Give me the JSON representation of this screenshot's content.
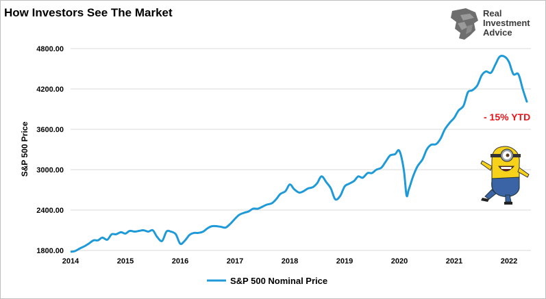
{
  "chart_data": {
    "type": "line",
    "title": "How Investors See The Market",
    "xlabel": "",
    "ylabel": "S&P 500 Price",
    "ylim": [
      1800,
      4800
    ],
    "xlim": [
      2014,
      2022.4
    ],
    "y_ticks": [
      "1800.00",
      "2400.00",
      "3000.00",
      "3600.00",
      "4200.00",
      "4800.00"
    ],
    "x_ticks": [
      "2014",
      "2015",
      "2016",
      "2017",
      "2018",
      "2019",
      "2020",
      "2021",
      "2022"
    ],
    "grid": "horizontal",
    "legend_position": "bottom",
    "series": [
      {
        "name": "S&P 500 Nominal Price",
        "color": "#1f9ad8",
        "x": [
          2014.0,
          2014.08,
          2014.17,
          2014.25,
          2014.33,
          2014.42,
          2014.5,
          2014.58,
          2014.67,
          2014.75,
          2014.83,
          2014.92,
          2015.0,
          2015.08,
          2015.17,
          2015.25,
          2015.33,
          2015.42,
          2015.5,
          2015.58,
          2015.67,
          2015.75,
          2015.83,
          2015.92,
          2016.0,
          2016.08,
          2016.17,
          2016.25,
          2016.33,
          2016.42,
          2016.5,
          2016.58,
          2016.67,
          2016.75,
          2016.83,
          2016.92,
          2017.0,
          2017.08,
          2017.17,
          2017.25,
          2017.33,
          2017.42,
          2017.5,
          2017.58,
          2017.67,
          2017.75,
          2017.83,
          2017.92,
          2018.0,
          2018.08,
          2018.17,
          2018.25,
          2018.33,
          2018.42,
          2018.5,
          2018.58,
          2018.67,
          2018.75,
          2018.83,
          2018.92,
          2019.0,
          2019.08,
          2019.17,
          2019.25,
          2019.33,
          2019.42,
          2019.5,
          2019.58,
          2019.67,
          2019.75,
          2019.83,
          2019.92,
          2020.0,
          2020.08,
          2020.13,
          2020.17,
          2020.25,
          2020.33,
          2020.42,
          2020.5,
          2020.58,
          2020.67,
          2020.75,
          2020.83,
          2020.92,
          2021.0,
          2021.08,
          2021.17,
          2021.25,
          2021.33,
          2021.42,
          2021.5,
          2021.58,
          2021.67,
          2021.75,
          2021.83,
          2021.92,
          2022.0,
          2022.08,
          2022.17,
          2022.25,
          2022.33
        ],
        "values": [
          1780,
          1790,
          1830,
          1860,
          1900,
          1950,
          1950,
          1990,
          1960,
          2040,
          2040,
          2070,
          2050,
          2090,
          2080,
          2090,
          2100,
          2080,
          2100,
          2000,
          1940,
          2080,
          2080,
          2040,
          1900,
          1940,
          2030,
          2060,
          2060,
          2080,
          2130,
          2160,
          2160,
          2150,
          2140,
          2200,
          2270,
          2330,
          2360,
          2380,
          2420,
          2420,
          2450,
          2480,
          2500,
          2560,
          2640,
          2680,
          2780,
          2710,
          2660,
          2680,
          2720,
          2740,
          2800,
          2900,
          2810,
          2720,
          2560,
          2610,
          2750,
          2790,
          2830,
          2900,
          2880,
          2950,
          2950,
          3000,
          3030,
          3120,
          3210,
          3230,
          3280,
          3000,
          2620,
          2700,
          2900,
          3050,
          3150,
          3300,
          3370,
          3380,
          3460,
          3600,
          3700,
          3770,
          3880,
          3950,
          4150,
          4180,
          4250,
          4400,
          4460,
          4440,
          4560,
          4680,
          4680,
          4600,
          4420,
          4420,
          4200,
          4000
        ]
      }
    ],
    "annotations": [
      {
        "text": "- 15% YTD",
        "color": "#e8131a"
      }
    ]
  },
  "brand": {
    "lines": [
      "Real",
      "Investment",
      "Advice"
    ],
    "logo_icon": "lion-head-icon"
  },
  "decoration": {
    "icon": "minion-cartoon-icon"
  }
}
